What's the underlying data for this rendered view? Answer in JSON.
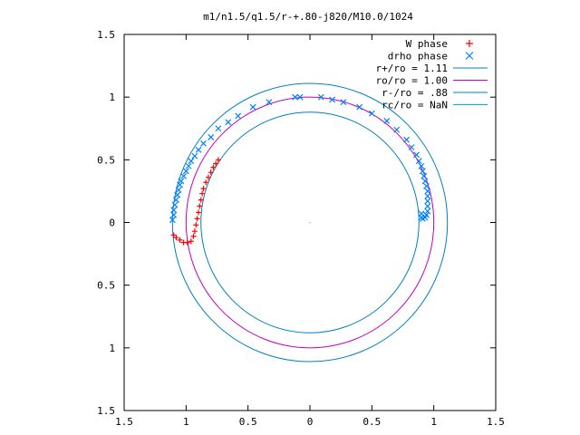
{
  "chart_data": {
    "type": "scatter",
    "title": "m1/n1.5/q1.5/r-+.80-j820/M10.0/1024",
    "xlabel": "",
    "ylabel": "",
    "xlim": [
      -1.5,
      1.5
    ],
    "ylim": [
      -1.5,
      1.5
    ],
    "x_ticks": [
      {
        "value": -1.5,
        "label": "1.5"
      },
      {
        "value": -1.0,
        "label": "1"
      },
      {
        "value": -0.5,
        "label": "0.5"
      },
      {
        "value": 0.0,
        "label": "0"
      },
      {
        "value": 0.5,
        "label": "0.5"
      },
      {
        "value": 1.0,
        "label": "1"
      },
      {
        "value": 1.5,
        "label": "1.5"
      }
    ],
    "y_ticks": [
      {
        "value": 1.5,
        "label": "1.5"
      },
      {
        "value": 1.0,
        "label": "1"
      },
      {
        "value": 0.5,
        "label": "0.5"
      },
      {
        "value": 0.0,
        "label": "0"
      },
      {
        "value": -0.5,
        "label": "0.5"
      },
      {
        "value": -1.0,
        "label": "1"
      },
      {
        "value": -1.5,
        "label": "1.5"
      }
    ],
    "grid": false,
    "legend_position": "top-right",
    "series": [
      {
        "name": "W phase",
        "marker": "plus",
        "color": "#ff0000",
        "points": [
          [
            -0.74,
            0.5
          ],
          [
            -0.76,
            0.47
          ],
          [
            -0.78,
            0.44
          ],
          [
            -0.8,
            0.4
          ],
          [
            -0.82,
            0.36
          ],
          [
            -0.84,
            0.32
          ],
          [
            -0.86,
            0.27
          ],
          [
            -0.87,
            0.23
          ],
          [
            -0.88,
            0.18
          ],
          [
            -0.89,
            0.13
          ],
          [
            -0.9,
            0.08
          ],
          [
            -0.91,
            0.03
          ],
          [
            -0.92,
            -0.02
          ],
          [
            -0.93,
            -0.07
          ],
          [
            -0.94,
            -0.11
          ],
          [
            -0.96,
            -0.15
          ],
          [
            -0.99,
            -0.16
          ],
          [
            -1.02,
            -0.16
          ],
          [
            -1.05,
            -0.14
          ],
          [
            -1.08,
            -0.12
          ],
          [
            -1.1,
            -0.1
          ]
        ]
      },
      {
        "name": "drho phase",
        "marker": "cross",
        "color": "#0080ff",
        "points": [
          [
            -1.11,
            0.02
          ],
          [
            -1.1,
            0.06
          ],
          [
            -1.1,
            0.1
          ],
          [
            -1.09,
            0.14
          ],
          [
            -1.08,
            0.18
          ],
          [
            -1.07,
            0.22
          ],
          [
            -1.06,
            0.26
          ],
          [
            -1.05,
            0.3
          ],
          [
            -1.04,
            0.33
          ],
          [
            -1.02,
            0.37
          ],
          [
            -1.0,
            0.41
          ],
          [
            -0.98,
            0.45
          ],
          [
            -0.96,
            0.49
          ],
          [
            -0.93,
            0.53
          ],
          [
            -0.9,
            0.58
          ],
          [
            -0.86,
            0.63
          ],
          [
            -0.8,
            0.68
          ],
          [
            -0.74,
            0.75
          ],
          [
            -0.66,
            0.8
          ],
          [
            -0.58,
            0.85
          ],
          [
            -0.46,
            0.92
          ],
          [
            -0.33,
            0.96
          ],
          [
            -0.12,
            1.0
          ],
          [
            -0.08,
            1.0
          ],
          [
            0.09,
            1.0
          ],
          [
            0.18,
            0.98
          ],
          [
            0.27,
            0.96
          ],
          [
            0.4,
            0.92
          ],
          [
            0.5,
            0.87
          ],
          [
            0.62,
            0.81
          ],
          [
            0.7,
            0.74
          ],
          [
            0.78,
            0.66
          ],
          [
            0.82,
            0.6
          ],
          [
            0.86,
            0.54
          ],
          [
            0.88,
            0.49
          ],
          [
            0.9,
            0.45
          ],
          [
            0.91,
            0.41
          ],
          [
            0.92,
            0.37
          ],
          [
            0.93,
            0.33
          ],
          [
            0.94,
            0.29
          ],
          [
            0.95,
            0.25
          ],
          [
            0.95,
            0.21
          ],
          [
            0.95,
            0.17
          ],
          [
            0.95,
            0.13
          ],
          [
            0.95,
            0.09
          ],
          [
            0.94,
            0.06
          ],
          [
            0.93,
            0.04
          ],
          [
            0.91,
            0.03
          ],
          [
            0.9,
            0.04
          ],
          [
            0.9,
            0.07
          ]
        ]
      },
      {
        "name": "r+/ro = 1.11",
        "shape": "circle",
        "radius": 1.11,
        "color": "#0080c0"
      },
      {
        "name": "ro/ro = 1.00",
        "shape": "circle",
        "radius": 1.0,
        "color": "#c000c0"
      },
      {
        "name": "r-/ro = .88",
        "shape": "circle",
        "radius": 0.88,
        "color": "#0080c0"
      },
      {
        "name": "rc/ro = NaN",
        "shape": "circle",
        "radius": null,
        "color": "#00b4d0"
      }
    ]
  }
}
